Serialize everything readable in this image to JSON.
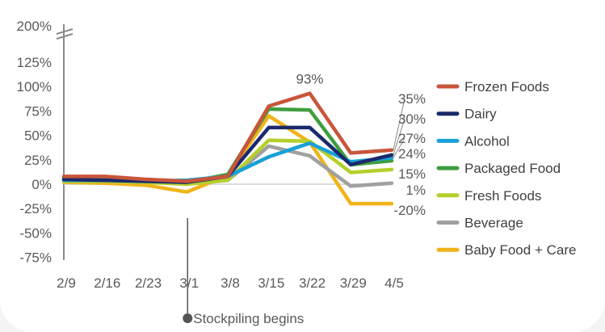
{
  "chart_data": {
    "type": "line",
    "title": "",
    "xlabel": "",
    "ylabel": "",
    "categories": [
      "2/9",
      "2/16",
      "2/23",
      "3/1",
      "3/8",
      "3/15",
      "3/22",
      "3/29",
      "4/5"
    ],
    "ylim": [
      -75,
      125
    ],
    "yticks": [
      "125%",
      "100%",
      "75%",
      "50%",
      "25%",
      "0%",
      "-25%",
      "-50%",
      "-75%"
    ],
    "yticks_values": [
      125,
      100,
      75,
      50,
      25,
      0,
      -25,
      -50,
      -75
    ],
    "axis_break_label": "200%",
    "grid": false,
    "legend_position": "right",
    "series": [
      {
        "name": "Frozen Foods",
        "color": "#c8553a",
        "values": [
          8,
          8,
          5,
          3,
          8,
          80,
          93,
          32,
          35
        ],
        "end_label": "35%"
      },
      {
        "name": "Dairy",
        "color": "#1a2a6c",
        "values": [
          5,
          4,
          3,
          2,
          8,
          58,
          58,
          20,
          30
        ],
        "end_label": "30%"
      },
      {
        "name": "Alcohol",
        "color": "#1aa0d8",
        "values": [
          4,
          4,
          3,
          4,
          8,
          28,
          42,
          23,
          27
        ],
        "end_label": "27%"
      },
      {
        "name": "Packaged Food",
        "color": "#3f9e3f",
        "values": [
          6,
          6,
          4,
          2,
          10,
          77,
          76,
          20,
          24
        ],
        "end_label": "24%"
      },
      {
        "name": "Fresh Foods",
        "color": "#b5cf2a",
        "values": [
          3,
          3,
          2,
          0,
          4,
          45,
          44,
          12,
          15
        ],
        "end_label": "15%"
      },
      {
        "name": "Beverage",
        "color": "#a0a0a0",
        "values": [
          3,
          3,
          2,
          1,
          4,
          39,
          29,
          -2,
          1
        ],
        "end_label": "1%"
      },
      {
        "name": "Baby Food + Care",
        "color": "#f0b41a",
        "values": [
          2,
          1,
          -1,
          -8,
          9,
          70,
          43,
          -20,
          -20
        ],
        "end_label": "-20%"
      }
    ],
    "annotations": [
      {
        "text": "93%",
        "series": "Frozen Foods",
        "category": "3/22"
      },
      {
        "text": "Stockpiling begins",
        "category": "3/1"
      }
    ]
  }
}
